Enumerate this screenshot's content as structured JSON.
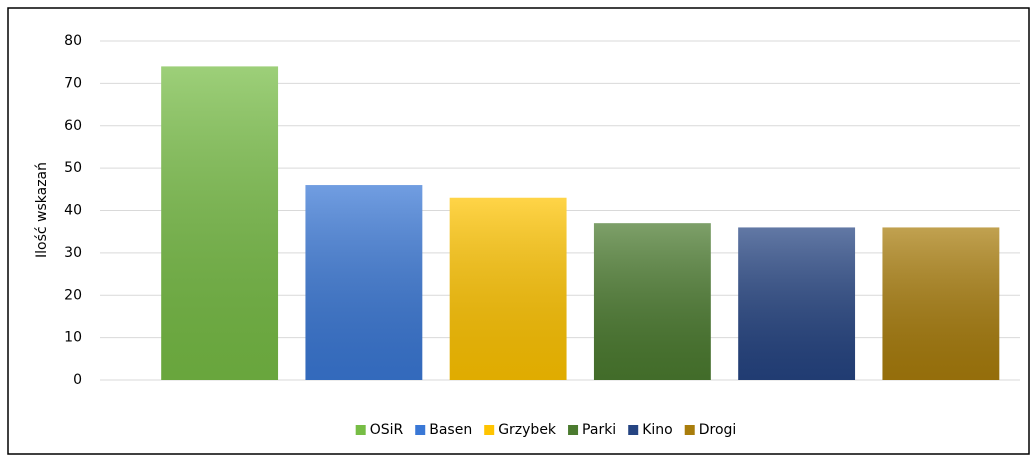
{
  "chart_data": {
    "type": "bar",
    "ylabel": "Ilość wskazań",
    "categories": [
      "OSiR",
      "Basen",
      "Grzybek",
      "Parki",
      "Kino",
      "Drogi"
    ],
    "values": [
      74,
      46,
      43,
      37,
      36,
      36
    ],
    "colors": [
      "#77bd45",
      "#3a78d6",
      "#ffc400",
      "#4b7b2f",
      "#254482",
      "#a97d0c"
    ],
    "ylim": [
      0,
      80
    ],
    "yticks": [
      0,
      10,
      20,
      30,
      40,
      50,
      60,
      70,
      80
    ],
    "grid": true,
    "legend": "bottom"
  }
}
